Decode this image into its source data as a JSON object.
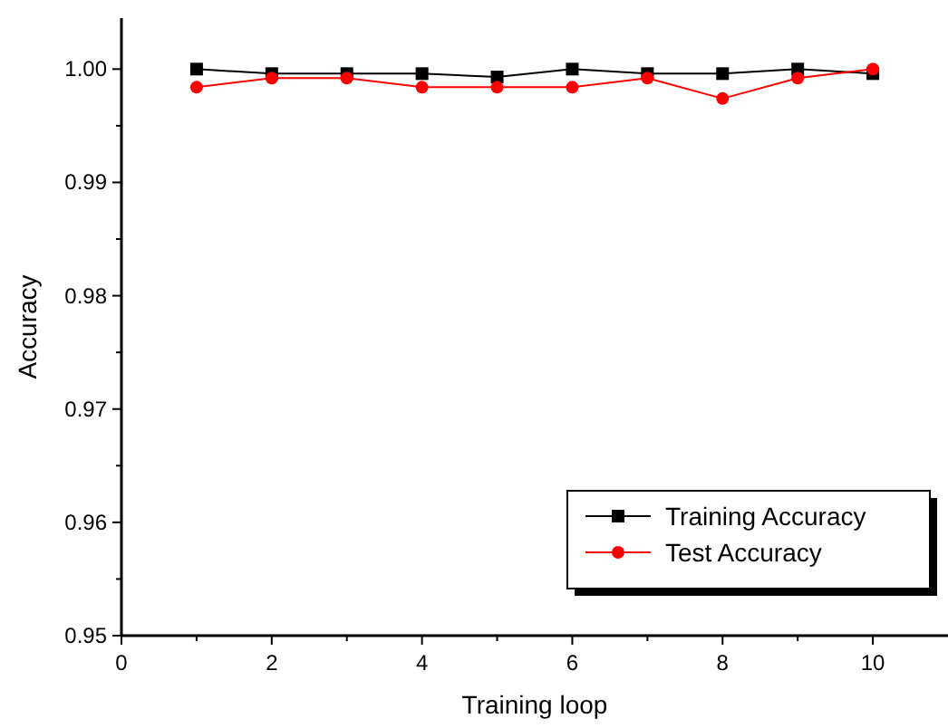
{
  "chart_data": {
    "type": "line",
    "xlabel": "Training loop",
    "ylabel": "Accuracy",
    "x": [
      1,
      2,
      3,
      4,
      5,
      6,
      7,
      8,
      9,
      10
    ],
    "xlim": [
      0,
      11
    ],
    "xticks": [
      0,
      {
        "value": 1,
        "label": null
      },
      2,
      {
        "value": 3,
        "label": null
      },
      4,
      {
        "value": 5,
        "label": null
      },
      6,
      {
        "value": 7,
        "label": null
      },
      8,
      {
        "value": 9,
        "label": null
      },
      10
    ],
    "ylim": [
      0.95,
      1.0045
    ],
    "yticks": [
      "0.95",
      {
        "value": 0.955,
        "label": null
      },
      0.96,
      {
        "value": 0.965,
        "label": null
      },
      0.97,
      {
        "value": 0.975,
        "label": null
      },
      0.98,
      {
        "value": 0.985,
        "label": null
      },
      0.99,
      {
        "value": 0.995,
        "label": null
      },
      {
        "value": 1,
        "label": "1.00"
      }
    ],
    "legend": "bottom right",
    "grid": false,
    "series": [
      {
        "name": "Training Accuracy",
        "color": "#000000",
        "marker": "square",
        "values": [
          1.0,
          0.9996,
          0.9996,
          0.9996,
          0.9993,
          1.0,
          0.9996,
          0.9996,
          1.0,
          0.9996
        ]
      },
      {
        "name": "Test Accuracy",
        "color": "#ff0000",
        "marker": "circle",
        "values": [
          0.9984,
          0.9992,
          0.9992,
          0.9984,
          0.9984,
          0.9984,
          0.9992,
          0.9974,
          0.9992,
          1.0
        ]
      }
    ]
  }
}
